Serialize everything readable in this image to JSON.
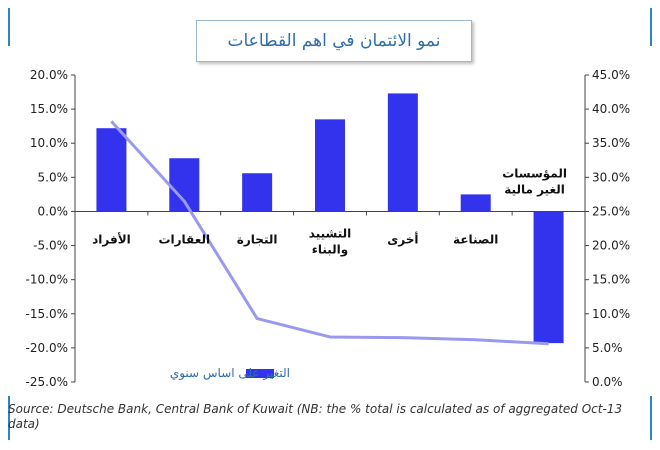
{
  "title": "نمو الائتمان في اهم القطاعات",
  "source": "Source: Deutsche Bank, Central Bank of Kuwait (NB: the % total is calculated as of aggregated Oct-13 data)",
  "chart_data": {
    "type": "bar",
    "categories": [
      "الأفراد",
      "العقارات",
      "التجارة",
      "التشييد والبناء",
      "أخرى",
      "الصناعة",
      "المؤسسات الغير مالية"
    ],
    "series": [
      {
        "name": "التغير على اساس سنوي",
        "type": "bar",
        "axis": "left",
        "color": "#3333ee",
        "values": [
          12.2,
          7.8,
          5.6,
          13.5,
          17.3,
          2.5,
          -19.3
        ]
      },
      {
        "type": "line",
        "axis": "right",
        "color": "#9999f0",
        "values": [
          38.2,
          26.5,
          9.3,
          6.6,
          6.5,
          6.2,
          5.6
        ]
      }
    ],
    "ylim_left": [
      -25,
      20
    ],
    "yticks_left": [
      "20.0%",
      "15.0%",
      "10.0%",
      "5.0%",
      "0.0%",
      "-5.0%",
      "-10.0%",
      "-15.0%",
      "-20.0%",
      "-25.0%"
    ],
    "ylim_right": [
      0,
      45
    ],
    "yticks_right": [
      "45.0%",
      "40.0%",
      "35.0%",
      "30.0%",
      "25.0%",
      "20.0%",
      "15.0%",
      "10.0%",
      "5.0%",
      "0.0%"
    ],
    "legend": "bottom-center",
    "grid": false
  }
}
